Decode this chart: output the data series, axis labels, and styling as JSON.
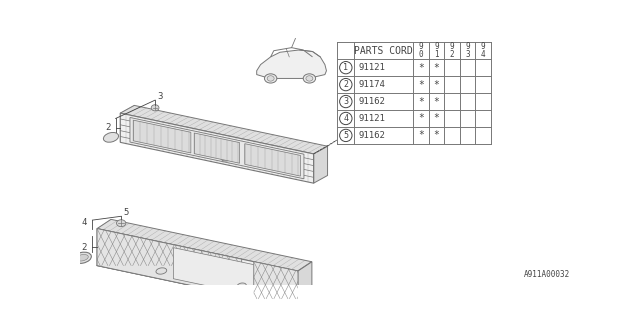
{
  "bg_color": "#ffffff",
  "table_header": "PARTS CORD",
  "year_cols": [
    "9\n0",
    "9\n1",
    "9\n2",
    "9\n3",
    "9\n4"
  ],
  "parts": [
    {
      "num": 1,
      "code": "91121",
      "years": [
        true,
        true,
        false,
        false,
        false
      ]
    },
    {
      "num": 2,
      "code": "91174",
      "years": [
        true,
        true,
        false,
        false,
        false
      ]
    },
    {
      "num": 3,
      "code": "91162",
      "years": [
        true,
        true,
        false,
        false,
        false
      ]
    },
    {
      "num": 4,
      "code": "91121",
      "years": [
        true,
        true,
        false,
        false,
        false
      ]
    },
    {
      "num": 5,
      "code": "91162",
      "years": [
        true,
        true,
        false,
        false,
        false
      ]
    }
  ],
  "footnote": "A911A00032",
  "line_color": "#777777",
  "text_color": "#444444",
  "face_color": "#f0f0f0",
  "top_face_color": "#e0e0e0",
  "side_face_color": "#d8d8d8",
  "mesh_color": "#c8c8c8"
}
